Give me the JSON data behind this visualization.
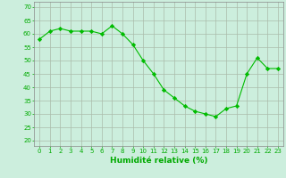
{
  "x": [
    0,
    1,
    2,
    3,
    4,
    5,
    6,
    7,
    8,
    9,
    10,
    11,
    12,
    13,
    14,
    15,
    16,
    17,
    18,
    19,
    20,
    21,
    22,
    23
  ],
  "y": [
    58,
    61,
    62,
    61,
    61,
    61,
    60,
    63,
    60,
    56,
    50,
    45,
    39,
    36,
    33,
    31,
    30,
    29,
    32,
    33,
    45,
    51,
    47,
    47
  ],
  "line_color": "#00bb00",
  "marker": "D",
  "marker_size": 2.2,
  "bg_color": "#cceedd",
  "grid_color": "#aabbaa",
  "xlabel": "Humidité relative (%)",
  "xlabel_color": "#00aa00",
  "ytick_labels": [
    "20",
    "25",
    "30",
    "35",
    "40",
    "45",
    "50",
    "55",
    "60",
    "65",
    "70"
  ],
  "ytick_vals": [
    20,
    25,
    30,
    35,
    40,
    45,
    50,
    55,
    60,
    65,
    70
  ],
  "xticks": [
    0,
    1,
    2,
    3,
    4,
    5,
    6,
    7,
    8,
    9,
    10,
    11,
    12,
    13,
    14,
    15,
    16,
    17,
    18,
    19,
    20,
    21,
    22,
    23
  ],
  "ylim": [
    18,
    72
  ],
  "xlim": [
    -0.5,
    23.5
  ],
  "tick_color": "#00aa00",
  "tick_fontsize": 5.0,
  "xlabel_fontsize": 6.5,
  "axis_color": "#888888",
  "linewidth": 0.8,
  "grid_linewidth": 0.5
}
